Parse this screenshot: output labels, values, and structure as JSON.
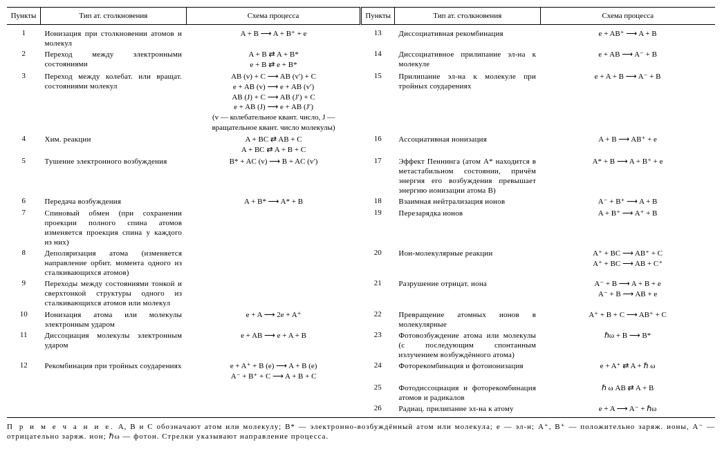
{
  "headers": {
    "num": "Пункты",
    "typ": "Тип ат. столкновения",
    "sch": "Схема процесса"
  },
  "left": [
    {
      "n": "1",
      "t": "Ионизация при столкновении атомов и молекул",
      "s": "A + B ⟶ A + B⁺ + e"
    },
    {
      "n": "2",
      "t": "Переход между электронными состояниями",
      "s": "A + B ⇄ A + B*\ne + B ⇄ e + B*"
    },
    {
      "n": "3",
      "t": "Переход между колебат. или вращат. состояниями молекул",
      "s": "AB (v) + C ⟶ AB (v′) + C\ne + AB (v) ⟶ e + AB (v′)\nAB (J) + C ⟶ AB (J′) + C\ne + AB (J) ⟶ e + AB (J′)\n(v — колебательное квант. число,   J — вращательное квант. число молекулы)"
    },
    {
      "n": "4",
      "t": "Хим. реакции",
      "s": "A + BC ⇄ AB + C\nA + BC ⇄ A + B + C"
    },
    {
      "n": "5",
      "t": "Тушение электронного возбуждения",
      "s": "B* + AC (v) ⟶ B + AC (v′)"
    },
    {
      "n": "6",
      "t": "Передача возбуждения",
      "s": "A + B* ⟶ A* + B"
    },
    {
      "n": "7",
      "t": "Спиновый обмен (при сохранении проекции полного спина атомов изменяется проекция спина у каждого из них)",
      "s": ""
    },
    {
      "n": "8",
      "t": "Деполяризация атома (изменяется направление орбит. момента одного из сталкивающихся атомов)",
      "s": ""
    },
    {
      "n": "9",
      "t": "Переходы между состояниями тонкой и сверхтонкой структуры одного из сталкивающихся атомов или молекул",
      "s": ""
    },
    {
      "n": "10",
      "t": "Ионизация атома или молекулы электронным ударом",
      "s": "e + A ⟶ 2e + A⁺"
    },
    {
      "n": "11",
      "t": "Диссоциация молекулы электронным ударом",
      "s": "e + AB ⟶ e + A + B"
    },
    {
      "n": "12",
      "t": "Рекомбинация при тройных соударениях",
      "s": "e + A⁺ + B (e) ⟶ A + B (e)\nA⁻ + B⁺ + C ⟶ A + B + C"
    }
  ],
  "right": [
    {
      "n": "13",
      "t": "Диссоциативная рекомбинация",
      "s": "e + AB⁺ ⟶ A + B"
    },
    {
      "n": "14",
      "t": "Диссоциативное прилипание эл-на к молекуле",
      "s": "e + AB ⟶ A⁻ + B"
    },
    {
      "n": "15",
      "t": "Прилипание эл-на к молекуле при тройных соударениях",
      "s": "e + A + B ⟶ A⁻ + B"
    },
    {
      "n": "16",
      "t": "Ассоциативная ионизация",
      "s": "A + B ⟶ AB⁺ + e"
    },
    {
      "n": "17",
      "t": "Эффект Пеннинга (атом A* находится в метастабильном состоянии, причём энергия его возбуждения превышает энергию ионизации атома B)",
      "s": "A* + B ⟶ A + B⁺ + e"
    },
    {
      "n": "18",
      "t": "Взаимная нейтрализация ионов",
      "s": "A⁻ + B⁺ ⟶ A + B"
    },
    {
      "n": "19",
      "t": "Перезарядка ионов",
      "s": "A + B⁺ ⟶ A⁺ + B"
    },
    {
      "n": "20",
      "t": "Ион-молекулярные реакции",
      "s": "A⁺ + BC ⟶ AB⁺ + C\nA⁺ + BC ⟶ AB + C⁺"
    },
    {
      "n": "21",
      "t": "Разрушение отрицат. иона",
      "s": "A⁻ + B ⟶ A + B + e\nA⁻ + B ⟶ AB + e"
    },
    {
      "n": "22",
      "t": "Превращение атомных ионов в молекулярные",
      "s": "A⁺ + B + C ⟶ AB⁺ + C"
    },
    {
      "n": "23",
      "t": "Фотовозбуждение атома или молекулы (с последующим спонтанным излучением возбуждённого атома)",
      "s": "ℏω + B ⟶ B*"
    },
    {
      "n": "24",
      "t": "Фоторекомбинация и фотоионизация",
      "s": "e + A⁺ ⇄ A + ℏ ω"
    },
    {
      "n": "25",
      "t": "Фотодиссоциация и фоторекомбинация атомов и радикалов",
      "s": "ℏ ω AB ⇄ A + B"
    },
    {
      "n": "26",
      "t": "Радиац. прилипание эл-на к атому",
      "s": "e + A ⟶ A⁻ + ℏω"
    }
  ],
  "footnote": "A, B и C обозначают атом или молекулу;  B* — электронно-возбуждённый атом или молекула;  e — эл-н;  A⁺, B⁺ — положительно заряж. ионы,  A⁻ — отрицательно заряж. ион;  ℏω — фотон.  Стрелки указывают направление процесса.",
  "footnote_lead": "П р и м е ч а н и е.",
  "style": {
    "font_family": "Times New Roman",
    "font_size_pt": 9,
    "text_color": "#000000",
    "background_color": "#ffffff",
    "rule_color": "#000000"
  }
}
